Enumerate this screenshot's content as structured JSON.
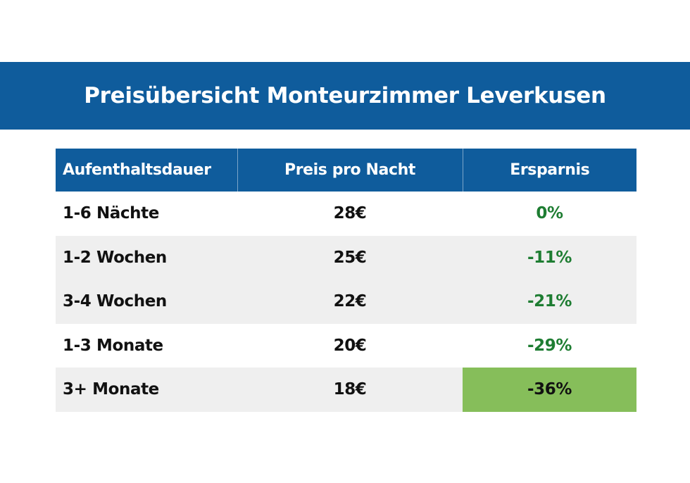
{
  "title": "Preisübersicht Monteurzimmer Leverkusen",
  "colors": {
    "banner": "#0f5c9c",
    "header": "#0f5c9c",
    "savings_text": "#1e7d32",
    "highlight_cell": "#86be5a",
    "alt_row": "#efefef"
  },
  "table": {
    "headers": [
      "Aufenthaltsdauer",
      "Preis pro Nacht",
      "Ersparnis"
    ],
    "rows": [
      {
        "duration": "1-6 Nächte",
        "price": "28€",
        "savings": "0%"
      },
      {
        "duration": "1-2 Wochen",
        "price": "25€",
        "savings": "-11%"
      },
      {
        "duration": "3-4 Wochen",
        "price": "22€",
        "savings": "-21%"
      },
      {
        "duration": "1-3 Monate",
        "price": "20€",
        "savings": "-29%"
      },
      {
        "duration": "3+ Monate",
        "price": "18€",
        "savings": "-36%"
      }
    ]
  }
}
